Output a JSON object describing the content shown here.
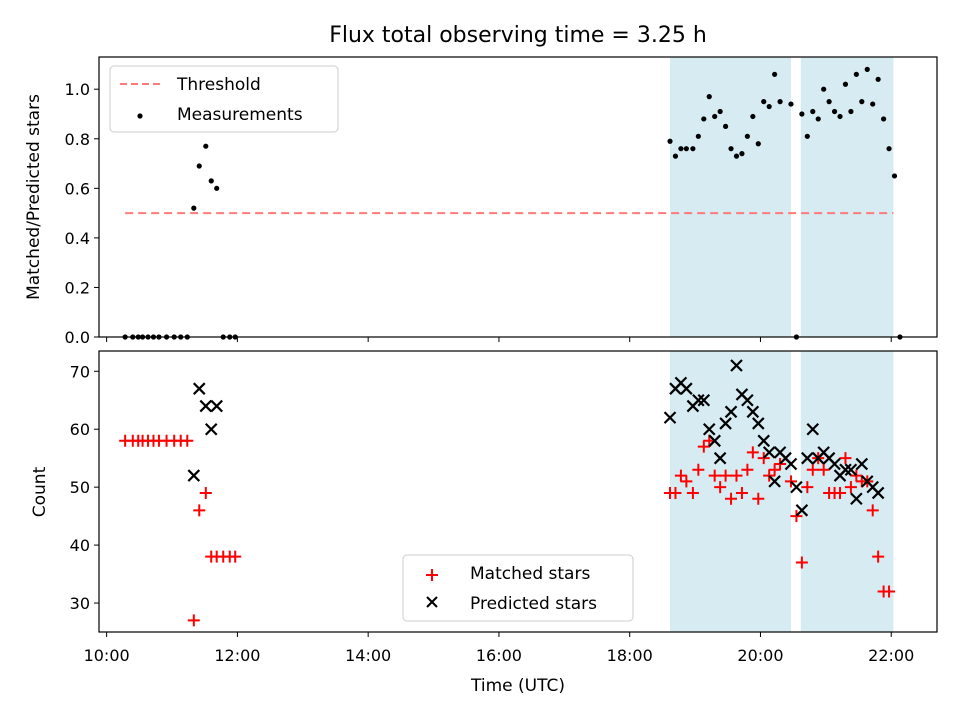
{
  "title": "Flux total observing time = 3.25 h",
  "chart_data": [
    {
      "type": "scatter",
      "panel": "top",
      "ylabel": "Matched/Predicted stars",
      "xlabel": "",
      "xlim": [
        "09:53",
        "22:42"
      ],
      "ylim": [
        0,
        1.13
      ],
      "yticks": [
        "0.0",
        "0.2",
        "0.4",
        "0.6",
        "0.8",
        "1.0"
      ],
      "grid": false,
      "legend_position": "top-left",
      "shaded_intervals": [
        [
          "18:37",
          "20:28"
        ],
        [
          "20:37",
          "22:02"
        ]
      ],
      "threshold": {
        "name": "Threshold",
        "value": 0.5,
        "x_range": [
          "10:17",
          "22:02"
        ],
        "color": "#ff7a7a"
      },
      "series": [
        {
          "name": "Measurements",
          "color": "#000000",
          "points": [
            [
              "10:17",
              0.0
            ],
            [
              "10:24",
              0.0
            ],
            [
              "10:29",
              0.0
            ],
            [
              "10:33",
              0.0
            ],
            [
              "10:38",
              0.0
            ],
            [
              "10:43",
              0.0
            ],
            [
              "10:48",
              0.0
            ],
            [
              "10:55",
              0.0
            ],
            [
              "11:02",
              0.0
            ],
            [
              "11:08",
              0.0
            ],
            [
              "11:14",
              0.0
            ],
            [
              "11:20",
              0.52
            ],
            [
              "11:25",
              0.69
            ],
            [
              "11:31",
              0.77
            ],
            [
              "11:36",
              0.63
            ],
            [
              "11:41",
              0.6
            ],
            [
              "11:47",
              0.0
            ],
            [
              "11:53",
              0.0
            ],
            [
              "11:58",
              0.0
            ],
            [
              "18:37",
              0.79
            ],
            [
              "18:42",
              0.73
            ],
            [
              "18:47",
              0.76
            ],
            [
              "18:52",
              0.76
            ],
            [
              "18:58",
              0.76
            ],
            [
              "19:03",
              0.81
            ],
            [
              "19:08",
              0.88
            ],
            [
              "19:13",
              0.97
            ],
            [
              "19:18",
              0.89
            ],
            [
              "19:23",
              0.91
            ],
            [
              "19:28",
              0.85
            ],
            [
              "19:33",
              0.76
            ],
            [
              "19:38",
              0.73
            ],
            [
              "19:43",
              0.74
            ],
            [
              "19:48",
              0.81
            ],
            [
              "19:53",
              0.89
            ],
            [
              "19:58",
              0.78
            ],
            [
              "20:03",
              0.95
            ],
            [
              "20:08",
              0.93
            ],
            [
              "20:13",
              1.06
            ],
            [
              "20:18",
              0.95
            ],
            [
              "20:28",
              0.94
            ],
            [
              "20:33",
              0.0
            ],
            [
              "20:38",
              0.9
            ],
            [
              "20:43",
              0.81
            ],
            [
              "20:48",
              0.91
            ],
            [
              "20:53",
              0.88
            ],
            [
              "20:58",
              1.0
            ],
            [
              "21:03",
              0.95
            ],
            [
              "21:08",
              0.91
            ],
            [
              "21:13",
              0.89
            ],
            [
              "21:18",
              1.02
            ],
            [
              "21:23",
              0.91
            ],
            [
              "21:28",
              1.06
            ],
            [
              "21:33",
              0.95
            ],
            [
              "21:38",
              1.08
            ],
            [
              "21:43",
              0.94
            ],
            [
              "21:48",
              1.04
            ],
            [
              "21:53",
              0.88
            ],
            [
              "21:58",
              0.76
            ],
            [
              "22:03",
              0.65
            ],
            [
              "22:08",
              0.0
            ]
          ]
        }
      ]
    },
    {
      "type": "scatter",
      "panel": "bottom",
      "ylabel": "Count",
      "xlabel": "Time (UTC)",
      "xlim": [
        "09:53",
        "22:42"
      ],
      "ylim": [
        25,
        73.5
      ],
      "yticks": [
        "30",
        "40",
        "50",
        "60",
        "70"
      ],
      "xticks": [
        "10:00",
        "12:00",
        "14:00",
        "16:00",
        "18:00",
        "20:00",
        "22:00"
      ],
      "grid": false,
      "legend_position": "bottom-center",
      "shaded_intervals": [
        [
          "18:37",
          "20:28"
        ],
        [
          "20:37",
          "22:02"
        ]
      ],
      "series": [
        {
          "name": "Matched stars",
          "marker": "plus",
          "color": "#ff0000",
          "points": [
            [
              "10:17",
              58
            ],
            [
              "10:24",
              58
            ],
            [
              "10:29",
              58
            ],
            [
              "10:33",
              58
            ],
            [
              "10:38",
              58
            ],
            [
              "10:43",
              58
            ],
            [
              "10:48",
              58
            ],
            [
              "10:55",
              58
            ],
            [
              "11:02",
              58
            ],
            [
              "11:08",
              58
            ],
            [
              "11:14",
              58
            ],
            [
              "11:20",
              27
            ],
            [
              "11:25",
              46
            ],
            [
              "11:31",
              49
            ],
            [
              "11:36",
              38
            ],
            [
              "11:41",
              38
            ],
            [
              "11:47",
              38
            ],
            [
              "11:53",
              38
            ],
            [
              "11:58",
              38
            ],
            [
              "18:37",
              49
            ],
            [
              "18:42",
              49
            ],
            [
              "18:47",
              52
            ],
            [
              "18:52",
              51
            ],
            [
              "18:58",
              49
            ],
            [
              "19:03",
              53
            ],
            [
              "19:08",
              57
            ],
            [
              "19:13",
              58
            ],
            [
              "19:18",
              52
            ],
            [
              "19:23",
              50
            ],
            [
              "19:28",
              52
            ],
            [
              "19:33",
              48
            ],
            [
              "19:38",
              52
            ],
            [
              "19:43",
              49
            ],
            [
              "19:48",
              53
            ],
            [
              "19:53",
              56
            ],
            [
              "19:58",
              48
            ],
            [
              "20:03",
              55
            ],
            [
              "20:08",
              52
            ],
            [
              "20:13",
              53
            ],
            [
              "20:18",
              54
            ],
            [
              "20:28",
              51
            ],
            [
              "20:33",
              45
            ],
            [
              "20:38",
              37
            ],
            [
              "20:43",
              50
            ],
            [
              "20:48",
              53
            ],
            [
              "20:53",
              55
            ],
            [
              "20:58",
              53
            ],
            [
              "21:03",
              49
            ],
            [
              "21:08",
              49
            ],
            [
              "21:13",
              49
            ],
            [
              "21:18",
              55
            ],
            [
              "21:23",
              50
            ],
            [
              "21:28",
              52
            ],
            [
              "21:33",
              51
            ],
            [
              "21:38",
              51
            ],
            [
              "21:43",
              46
            ],
            [
              "21:48",
              38
            ],
            [
              "21:53",
              32
            ],
            [
              "21:58",
              32
            ]
          ]
        },
        {
          "name": "Predicted stars",
          "marker": "x",
          "color": "#000000",
          "points": [
            [
              "11:20",
              52
            ],
            [
              "11:25",
              67
            ],
            [
              "11:31",
              64
            ],
            [
              "11:36",
              60
            ],
            [
              "11:41",
              64
            ],
            [
              "18:37",
              62
            ],
            [
              "18:42",
              67
            ],
            [
              "18:47",
              68
            ],
            [
              "18:52",
              67
            ],
            [
              "18:58",
              64
            ],
            [
              "19:03",
              65
            ],
            [
              "19:08",
              65
            ],
            [
              "19:13",
              60
            ],
            [
              "19:18",
              58
            ],
            [
              "19:23",
              55
            ],
            [
              "19:28",
              61
            ],
            [
              "19:33",
              63
            ],
            [
              "19:38",
              71
            ],
            [
              "19:43",
              66
            ],
            [
              "19:48",
              65
            ],
            [
              "19:53",
              63
            ],
            [
              "19:58",
              61
            ],
            [
              "20:03",
              58
            ],
            [
              "20:08",
              56
            ],
            [
              "20:13",
              51
            ],
            [
              "20:18",
              56
            ],
            [
              "20:23",
              55
            ],
            [
              "20:28",
              54
            ],
            [
              "20:33",
              50
            ],
            [
              "20:38",
              46
            ],
            [
              "20:43",
              55
            ],
            [
              "20:48",
              60
            ],
            [
              "20:53",
              55
            ],
            [
              "20:58",
              56
            ],
            [
              "21:03",
              55
            ],
            [
              "21:08",
              54
            ],
            [
              "21:13",
              52
            ],
            [
              "21:18",
              53
            ],
            [
              "21:23",
              53
            ],
            [
              "21:28",
              48
            ],
            [
              "21:33",
              54
            ],
            [
              "21:38",
              51
            ],
            [
              "21:43",
              50
            ],
            [
              "21:48",
              49
            ]
          ]
        }
      ]
    }
  ]
}
